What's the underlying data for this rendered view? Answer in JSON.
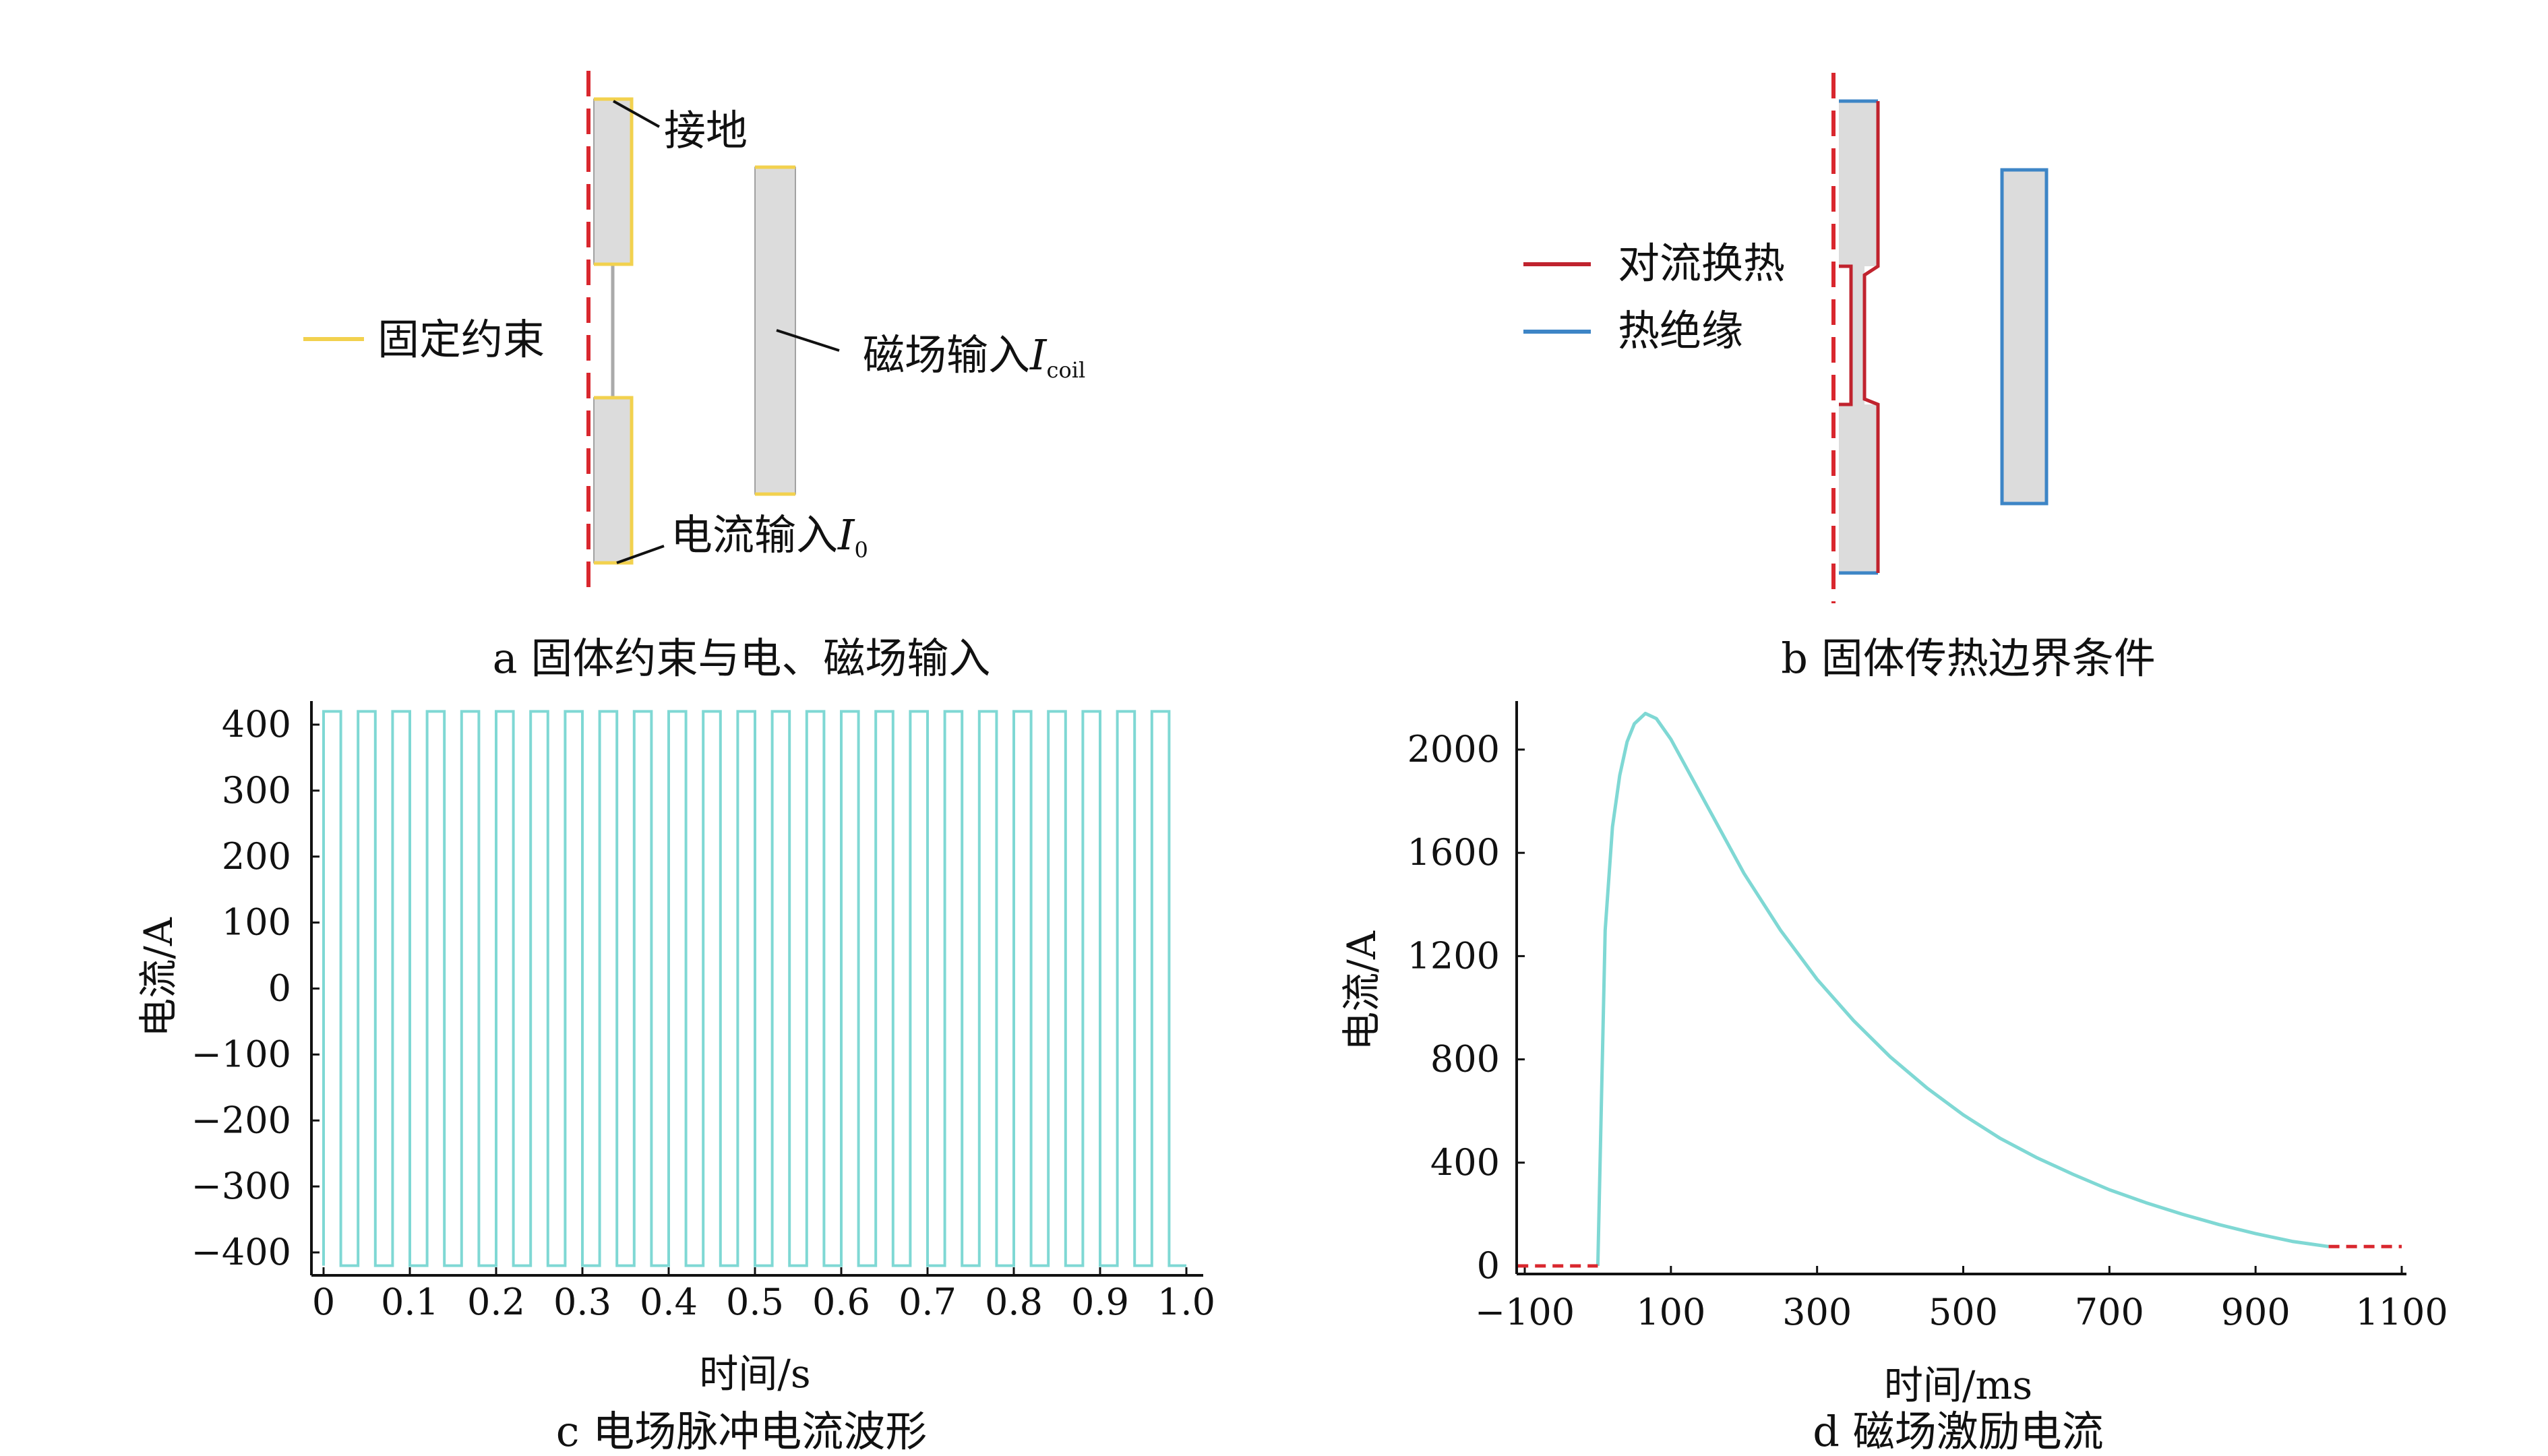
{
  "panel_a": {
    "caption": "a  固体约束与电、磁场输入",
    "label_ground": "接地",
    "label_fixed": "固定约束",
    "label_coil": "磁场输入",
    "coil_symbol": "I",
    "coil_subscript": "coil",
    "label_current": "电流输入",
    "current_symbol": "I",
    "current_subscript": "0",
    "colors": {
      "fixed": "#f2d14e",
      "axis": "#d9272e",
      "body": "#dcdcdc"
    }
  },
  "panel_b": {
    "caption": "b  固体传热边界条件",
    "legend_convection": "对流换热",
    "legend_insulation": "热绝缘",
    "colors": {
      "convection": "#c0232e",
      "insulation": "#3d85c6",
      "axis": "#d9272e",
      "body": "#dcdcdc"
    }
  },
  "chart_data": [
    {
      "id": "c",
      "type": "line",
      "caption": "c  电场脉冲电流波形",
      "xlabel": "时间/s",
      "ylabel": "电流/A",
      "xlim": [
        0,
        1.0
      ],
      "ylim": [
        -420,
        420
      ],
      "xticks": [
        "0",
        "0.1",
        "0.2",
        "0.3",
        "0.4",
        "0.5",
        "0.6",
        "0.7",
        "0.8",
        "0.9",
        "1.0"
      ],
      "yticks": [
        "400",
        "300",
        "200",
        "100",
        "0",
        "-100",
        "-200",
        "-300",
        "-400"
      ],
      "series": [
        {
          "waveform": "square",
          "amplitude": 420,
          "period": 0.04,
          "cycles": 25,
          "color": "#7fd8d4"
        }
      ]
    },
    {
      "id": "d",
      "type": "line",
      "caption": "d  磁场激励电流",
      "xlabel": "时间/ms",
      "ylabel": "电流/A",
      "xlim": [
        -110,
        1100
      ],
      "ylim": [
        0,
        2200
      ],
      "xticks": [
        "-100",
        "100",
        "300",
        "500",
        "700",
        "900",
        "1100"
      ],
      "yticks": [
        "2000",
        "1600",
        "1200",
        "800",
        "400",
        "0"
      ],
      "series": [
        {
          "points": [
            [
              0,
              0
            ],
            [
              10,
              1300
            ],
            [
              20,
              1700
            ],
            [
              30,
              1900
            ],
            [
              40,
              2030
            ],
            [
              50,
              2100
            ],
            [
              65,
              2140
            ],
            [
              80,
              2120
            ],
            [
              100,
              2040
            ],
            [
              150,
              1780
            ],
            [
              200,
              1520
            ],
            [
              250,
              1300
            ],
            [
              300,
              1110
            ],
            [
              350,
              950
            ],
            [
              400,
              810
            ],
            [
              450,
              690
            ],
            [
              500,
              585
            ],
            [
              550,
              495
            ],
            [
              600,
              420
            ],
            [
              650,
              355
            ],
            [
              700,
              295
            ],
            [
              750,
              245
            ],
            [
              800,
              200
            ],
            [
              850,
              160
            ],
            [
              900,
              125
            ],
            [
              950,
              95
            ],
            [
              1000,
              75
            ]
          ],
          "color": "#7fd8d4"
        },
        {
          "points": [
            [
              -110,
              0
            ],
            [
              0,
              0
            ]
          ],
          "style": "dashed",
          "color": "#d9272e"
        },
        {
          "points": [
            [
              1000,
              75
            ],
            [
              1100,
              75
            ]
          ],
          "style": "dashed",
          "color": "#d9272e"
        }
      ]
    }
  ]
}
